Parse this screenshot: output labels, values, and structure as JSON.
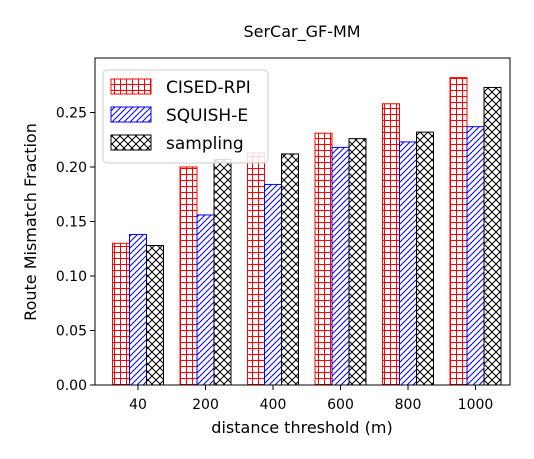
{
  "chart_data": {
    "type": "bar",
    "title": "SerCar_GF-MM",
    "xlabel": "distance threshold (m)",
    "ylabel": "Route Mismatch Fraction",
    "categories": [
      "40",
      "200",
      "400",
      "600",
      "800",
      "1000"
    ],
    "ylim": [
      0,
      0.3
    ],
    "yticks": [
      0.0,
      0.05,
      0.1,
      0.15,
      0.2,
      0.25
    ],
    "ytick_labels": [
      "0.00",
      "0.05",
      "0.10",
      "0.15",
      "0.20",
      "0.25"
    ],
    "grid": false,
    "legend_position": "top-left",
    "series": [
      {
        "name": "CISED-RPI",
        "color": "#ff0000",
        "hatch": "grid",
        "values": [
          0.13,
          0.2,
          0.213,
          0.231,
          0.258,
          0.282
        ]
      },
      {
        "name": "SQUISH-E",
        "color": "#0000ff",
        "hatch": "diagonal",
        "values": [
          0.138,
          0.156,
          0.184,
          0.218,
          0.223,
          0.237
        ]
      },
      {
        "name": "sampling",
        "color": "#000000",
        "hatch": "crosshatch",
        "values": [
          0.128,
          0.207,
          0.212,
          0.226,
          0.232,
          0.273
        ]
      }
    ]
  }
}
